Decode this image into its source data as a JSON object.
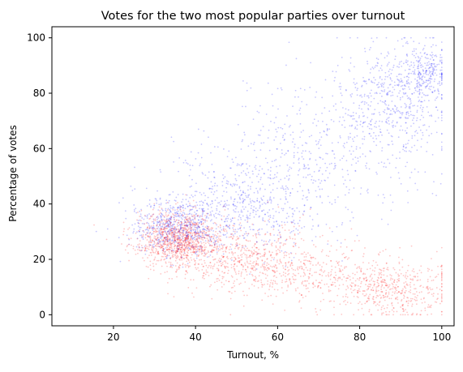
{
  "chart_data": {
    "type": "scatter",
    "title": "Votes for the two most popular parties over turnout",
    "xlabel": "Turnout, %",
    "ylabel": "Percentage of votes",
    "xlim": [
      5,
      103
    ],
    "ylim": [
      -4,
      104
    ],
    "xticks": [
      20,
      40,
      60,
      80,
      100
    ],
    "yticks": [
      0,
      20,
      40,
      60,
      80,
      100
    ],
    "grid": false,
    "legend": "none",
    "series": [
      {
        "color": "#0000ff",
        "clusters": [
          {
            "x_mean": 36,
            "x_sd": 6,
            "y_mean": 31,
            "y_sd": 5,
            "weight": 0.28
          },
          {
            "x_mean": 52,
            "x_sd": 11,
            "y_mean": 40,
            "y_sd": 9,
            "weight": 0.22
          },
          {
            "x_mean": 70,
            "x_sd": 12,
            "y_mean": 58,
            "y_sd": 12,
            "weight": 0.18
          },
          {
            "x_mean": 88,
            "x_sd": 7,
            "y_mean": 78,
            "y_sd": 10,
            "weight": 0.22
          },
          {
            "x_mean": 96,
            "x_sd": 3,
            "y_mean": 88,
            "y_sd": 5,
            "weight": 0.1
          }
        ]
      },
      {
        "color": "#ff0000",
        "clusters": [
          {
            "x_mean": 36,
            "x_sd": 5,
            "y_mean": 27,
            "y_sd": 5,
            "weight": 0.42
          },
          {
            "x_mean": 50,
            "x_sd": 9,
            "y_mean": 21,
            "y_sd": 6,
            "weight": 0.22
          },
          {
            "x_mean": 68,
            "x_sd": 10,
            "y_mean": 15,
            "y_sd": 6,
            "weight": 0.16
          },
          {
            "x_mean": 88,
            "x_sd": 7,
            "y_mean": 9,
            "y_sd": 5,
            "weight": 0.2
          }
        ]
      }
    ]
  }
}
